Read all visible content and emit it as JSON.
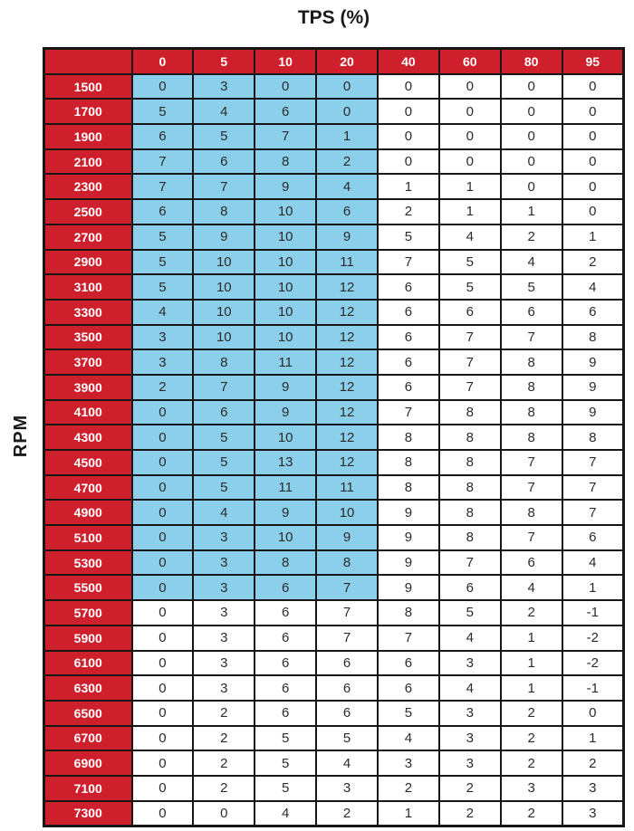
{
  "title": "TPS (%)",
  "y_axis_label": "RPM",
  "colors": {
    "header_red": "#CE202C",
    "highlight_blue": "#8CCFEA",
    "border_black": "#161616",
    "header_text": "#FFFFFF",
    "data_text": "#2B2B2B"
  },
  "chart_data": {
    "type": "table",
    "title": "TPS (%)",
    "col_axis_label": "TPS (%)",
    "row_axis_label": "RPM",
    "columns": [
      "0",
      "5",
      "10",
      "20",
      "40",
      "60",
      "80",
      "95"
    ],
    "highlight": {
      "note": "light-blue shaded cells",
      "rpm_from": 1500,
      "rpm_to": 5500,
      "columns": [
        "0",
        "5",
        "10",
        "20"
      ]
    },
    "rows": [
      {
        "rpm": "1500",
        "values": [
          0,
          3,
          0,
          0,
          0,
          0,
          0,
          0
        ]
      },
      {
        "rpm": "1700",
        "values": [
          5,
          4,
          6,
          0,
          0,
          0,
          0,
          0
        ]
      },
      {
        "rpm": "1900",
        "values": [
          6,
          5,
          7,
          1,
          0,
          0,
          0,
          0
        ]
      },
      {
        "rpm": "2100",
        "values": [
          7,
          6,
          8,
          2,
          0,
          0,
          0,
          0
        ]
      },
      {
        "rpm": "2300",
        "values": [
          7,
          7,
          9,
          4,
          1,
          1,
          0,
          0
        ]
      },
      {
        "rpm": "2500",
        "values": [
          6,
          8,
          10,
          6,
          2,
          1,
          1,
          0
        ]
      },
      {
        "rpm": "2700",
        "values": [
          5,
          9,
          10,
          9,
          5,
          4,
          2,
          1
        ]
      },
      {
        "rpm": "2900",
        "values": [
          5,
          10,
          10,
          11,
          7,
          5,
          4,
          2
        ]
      },
      {
        "rpm": "3100",
        "values": [
          5,
          10,
          10,
          12,
          6,
          5,
          5,
          4
        ]
      },
      {
        "rpm": "3300",
        "values": [
          4,
          10,
          10,
          12,
          6,
          6,
          6,
          6
        ]
      },
      {
        "rpm": "3500",
        "values": [
          3,
          10,
          10,
          12,
          6,
          7,
          7,
          8
        ]
      },
      {
        "rpm": "3700",
        "values": [
          3,
          8,
          11,
          12,
          6,
          7,
          8,
          9
        ]
      },
      {
        "rpm": "3900",
        "values": [
          2,
          7,
          9,
          12,
          6,
          7,
          8,
          9
        ]
      },
      {
        "rpm": "4100",
        "values": [
          0,
          6,
          9,
          12,
          7,
          8,
          8,
          9
        ]
      },
      {
        "rpm": "4300",
        "values": [
          0,
          5,
          10,
          12,
          8,
          8,
          8,
          8
        ]
      },
      {
        "rpm": "4500",
        "values": [
          0,
          5,
          13,
          12,
          8,
          8,
          7,
          7
        ]
      },
      {
        "rpm": "4700",
        "values": [
          0,
          5,
          11,
          11,
          8,
          8,
          7,
          7
        ]
      },
      {
        "rpm": "4900",
        "values": [
          0,
          4,
          9,
          10,
          9,
          8,
          8,
          7
        ]
      },
      {
        "rpm": "5100",
        "values": [
          0,
          3,
          10,
          9,
          9,
          8,
          7,
          6
        ]
      },
      {
        "rpm": "5300",
        "values": [
          0,
          3,
          8,
          8,
          9,
          7,
          6,
          4
        ]
      },
      {
        "rpm": "5500",
        "values": [
          0,
          3,
          6,
          7,
          9,
          6,
          4,
          1
        ]
      },
      {
        "rpm": "5700",
        "values": [
          0,
          3,
          6,
          7,
          8,
          5,
          2,
          -1
        ]
      },
      {
        "rpm": "5900",
        "values": [
          0,
          3,
          6,
          7,
          7,
          4,
          1,
          -2
        ]
      },
      {
        "rpm": "6100",
        "values": [
          0,
          3,
          6,
          6,
          6,
          3,
          1,
          -2
        ]
      },
      {
        "rpm": "6300",
        "values": [
          0,
          3,
          6,
          6,
          6,
          4,
          1,
          -1
        ]
      },
      {
        "rpm": "6500",
        "values": [
          0,
          2,
          6,
          6,
          5,
          3,
          2,
          0
        ]
      },
      {
        "rpm": "6700",
        "values": [
          0,
          2,
          5,
          5,
          4,
          3,
          2,
          1
        ]
      },
      {
        "rpm": "6900",
        "values": [
          0,
          2,
          5,
          4,
          3,
          3,
          2,
          2
        ]
      },
      {
        "rpm": "7100",
        "values": [
          0,
          2,
          5,
          3,
          2,
          2,
          3,
          3
        ]
      },
      {
        "rpm": "7300",
        "values": [
          0,
          0,
          4,
          2,
          1,
          2,
          2,
          3
        ]
      }
    ]
  }
}
